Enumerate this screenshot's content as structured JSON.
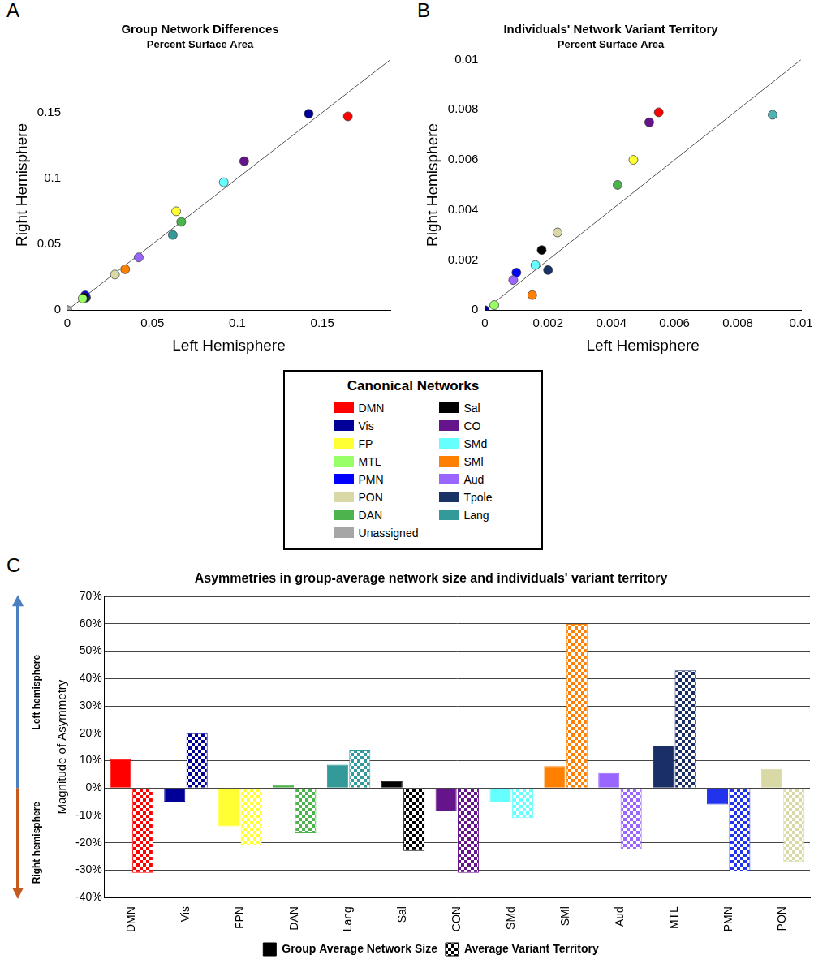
{
  "chart_data": [
    {
      "panel": "A",
      "type": "scatter",
      "title": "Group Network Differences",
      "subtitle": "Percent Surface Area",
      "x_label": "Left Hemisphere",
      "y_label": "Right Hemisphere",
      "x": [
        0.165,
        0.142,
        0.104,
        0.092,
        0.064,
        0.067,
        0.062,
        0.042,
        0.034,
        0.028,
        0.011,
        0.0105,
        0.01,
        0.009,
        0
      ],
      "values": [
        0.147,
        0.149,
        0.113,
        0.097,
        0.075,
        0.067,
        0.057,
        0.04,
        0.031,
        0.027,
        0.0095,
        0.0112,
        0.0098,
        0.0088,
        0
      ],
      "colors": [
        "#ff0000",
        "#000099",
        "#66148c",
        "#66ffff",
        "#ffff33",
        "#4db34d",
        "#339999",
        "#9966ff",
        "#ff8000",
        "#d9d9a6",
        "#1a3366",
        "#0000ff",
        "#000000",
        "#99ff66",
        "#a6a6a6"
      ],
      "xlim": [
        0,
        0.19
      ],
      "ylim": [
        0,
        0.19
      ],
      "xticks": [
        0,
        0.05,
        0.1,
        0.15
      ],
      "yticks": [
        0,
        0.05,
        0.1,
        0.15
      ],
      "grid": false
    },
    {
      "panel": "B",
      "type": "scatter",
      "title": "Individuals' Network Variant Territory",
      "subtitle": "Percent Surface Area",
      "x_label": "Left Hemisphere",
      "y_label": "Right Hemisphere",
      "x": [
        0.0055,
        0.0052,
        0.0047,
        0.0042,
        0.0091,
        0.0023,
        0.0018,
        0.0016,
        0.002,
        0.001,
        0.0009,
        0.0015,
        0.0003,
        0
      ],
      "values": [
        0.0079,
        0.0075,
        0.006,
        0.005,
        0.0078,
        0.0031,
        0.0024,
        0.0018,
        0.0016,
        0.0015,
        0.0012,
        0.0006,
        0.0002,
        0
      ],
      "x_error": [
        0.0001,
        0.0001,
        0.0001,
        0.0001,
        0.0001,
        0.0001,
        0.0001,
        0.0001,
        0.0001,
        0.0001,
        0.0001,
        0.0001,
        0.0001,
        0.0001
      ],
      "y_error": [
        0.0001,
        0.0001,
        0.0001,
        0.0001,
        0.0001,
        0.0001,
        0.0001,
        0.0001,
        0.0001,
        0.0001,
        0.0001,
        0.0001,
        0.0001,
        0.0001
      ],
      "colors": [
        "#ff0000",
        "#66148c",
        "#ffff33",
        "#4db34d",
        "#4fb3b3",
        "#d9d9a6",
        "#000000",
        "#66ffff",
        "#1a3366",
        "#0000ff",
        "#9966ff",
        "#ff8000",
        "#99ff66",
        "#000099"
      ],
      "xlim": [
        0,
        0.01
      ],
      "ylim": [
        0,
        0.01
      ],
      "xticks": [
        0,
        0.002,
        0.004,
        0.006,
        0.008,
        0.01
      ],
      "yticks": [
        0,
        0.002,
        0.004,
        0.006,
        0.008,
        0.01
      ],
      "grid": false
    },
    {
      "panel": "C",
      "type": "bar",
      "title": "Asymmetries in group-average network size and individuals' variant territory",
      "y_label": "Magnitude of Asymmetry",
      "annotations": [
        "Left hemisphere",
        "Right hemisphere"
      ],
      "categories": [
        "DMN",
        "Vis",
        "FPN",
        "DAN",
        "Lang",
        "Sal",
        "CON",
        "SMd",
        "SMl",
        "Aud",
        "MTL",
        "PMN",
        "PON"
      ],
      "colors": [
        "#ff0000",
        "#000099",
        "#ffff33",
        "#4db34d",
        "#339999",
        "#000000",
        "#66148c",
        "#66ffff",
        "#ff8000",
        "#9966ff",
        "#1a2f66",
        "#2233ee",
        "#d9d9a6"
      ],
      "series": [
        {
          "name": "Group Average Network Size",
          "color": "#000000",
          "values": [
            10.5,
            -5,
            -14,
            1,
            8.5,
            2.5,
            -8.5,
            -5,
            8,
            5.5,
            15.5,
            -6,
            7
          ]
        },
        {
          "name": "Average Variant Territory",
          "color": "#000000",
          "values": [
            -31,
            20,
            -21,
            -16.5,
            14,
            -23,
            -31,
            -11,
            60,
            -22.5,
            43,
            -30.5,
            -27
          ]
        }
      ],
      "ylim": [
        -40,
        70
      ],
      "yticks": [
        {
          "value": -40,
          "label": "-40%"
        },
        {
          "value": -30,
          "label": "-30%"
        },
        {
          "value": -20,
          "label": "-20%"
        },
        {
          "value": -10,
          "label": "-10%"
        },
        {
          "value": 0,
          "label": "0%"
        },
        {
          "value": 10,
          "label": "10%"
        },
        {
          "value": 20,
          "label": "20%"
        },
        {
          "value": 30,
          "label": "30%"
        },
        {
          "value": 40,
          "label": "40%"
        },
        {
          "value": 50,
          "label": "50%"
        },
        {
          "value": 60,
          "label": "60%"
        },
        {
          "value": 70,
          "label": "70%"
        }
      ],
      "grid": true,
      "legend": "bottom"
    }
  ],
  "network_key": {
    "title": "Canonical Networks",
    "columns": [
      [
        {
          "name": "DMN",
          "color": "#ff0000"
        },
        {
          "name": "Vis",
          "color": "#000099"
        },
        {
          "name": "FP",
          "color": "#ffff33"
        },
        {
          "name": "MTL",
          "color": "#99ff66"
        },
        {
          "name": "PMN",
          "color": "#0000ff"
        },
        {
          "name": "PON",
          "color": "#d9d9a6"
        },
        {
          "name": "DAN",
          "color": "#4db34d"
        },
        {
          "name": "Unassigned",
          "color": "#a6a6a6"
        }
      ],
      [
        {
          "name": "Sal",
          "color": "#000000"
        },
        {
          "name": "CO",
          "color": "#66148c"
        },
        {
          "name": "SMd",
          "color": "#66ffff"
        },
        {
          "name": "SMl",
          "color": "#ff8000"
        },
        {
          "name": "Aud",
          "color": "#9966ff"
        },
        {
          "name": "Tpole",
          "color": "#1a3366"
        },
        {
          "name": "Lang",
          "color": "#339999"
        }
      ]
    ]
  }
}
